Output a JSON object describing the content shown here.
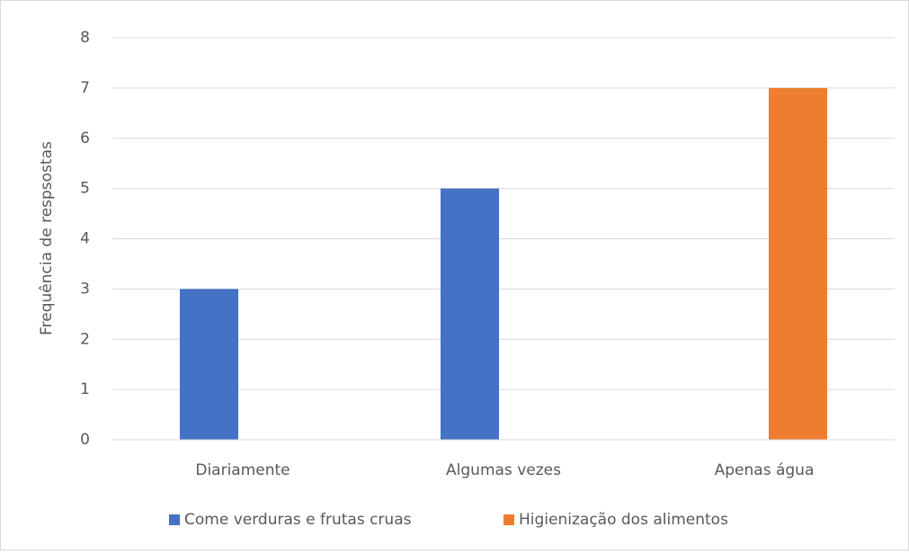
{
  "chart_data": {
    "type": "bar",
    "y_label": "Frequência de respsostas",
    "categories": [
      "Diariamente",
      "Algumas vezes",
      "Apenas água"
    ],
    "series": [
      {
        "name": "Come verduras e frutas cruas",
        "color": "#4472c4",
        "values": [
          3,
          5,
          null
        ]
      },
      {
        "name": "Higienização dos alimentos",
        "color": "#ed7d31",
        "values": [
          null,
          null,
          7
        ]
      }
    ],
    "ylim": [
      0,
      8
    ],
    "yticks": [
      0,
      1,
      2,
      3,
      4,
      5,
      6,
      7,
      8
    ],
    "grid": true,
    "legend": "bottom"
  }
}
